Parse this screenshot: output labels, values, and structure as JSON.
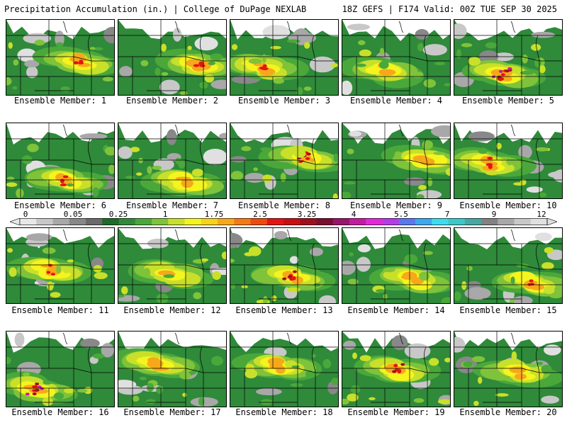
{
  "header": {
    "left": "Precipitation Accumulation (in.) | College of DuPage NEXLAB",
    "right": "18Z GEFS | F174 Valid: 00Z TUE SEP 30 2025"
  },
  "scale": {
    "labels": [
      "0",
      "0.05",
      "0.25",
      "1",
      "1.75",
      "2.5",
      "3.25",
      "4",
      "5.5",
      "7",
      "9",
      "12"
    ],
    "colors": [
      "#e8e8e8",
      "#c8c8c8",
      "#a8a8a8",
      "#888888",
      "#6a6a6a",
      "#1e6b2a",
      "#2f8a3a",
      "#4aa83a",
      "#7fc33a",
      "#c8e02a",
      "#f4f41e",
      "#f7d21a",
      "#f7a81a",
      "#f47a14",
      "#ee4a10",
      "#e41414",
      "#c80f14",
      "#a00f1e",
      "#7a0f32",
      "#98146e",
      "#c41ca0",
      "#e428d8",
      "#b43ce8",
      "#5a78ee",
      "#3ca8ee",
      "#3cdcee",
      "#3cc8c8",
      "#46a8a0",
      "#828282",
      "#a8a8a8",
      "#c8c8c8",
      "#e0e0e0"
    ]
  },
  "members": [
    {
      "label": "Ensemble Member: 1",
      "peak": 3
    },
    {
      "label": "Ensemble Member: 2",
      "peak": 3
    },
    {
      "label": "Ensemble Member: 3",
      "peak": 3
    },
    {
      "label": "Ensemble Member: 4",
      "peak": 2
    },
    {
      "label": "Ensemble Member: 5",
      "peak": 5
    },
    {
      "label": "Ensemble Member: 6",
      "peak": 3
    },
    {
      "label": "Ensemble Member: 7",
      "peak": 2
    },
    {
      "label": "Ensemble Member: 8",
      "peak": 4
    },
    {
      "label": "Ensemble Member: 9",
      "peak": 2
    },
    {
      "label": "Ensemble Member: 10",
      "peak": 3
    },
    {
      "label": "Ensemble Member: 11",
      "peak": 3
    },
    {
      "label": "Ensemble Member: 12",
      "peak": 2
    },
    {
      "label": "Ensemble Member: 13",
      "peak": 4
    },
    {
      "label": "Ensemble Member: 14",
      "peak": 2
    },
    {
      "label": "Ensemble Member: 15",
      "peak": 3
    },
    {
      "label": "Ensemble Member: 16",
      "peak": 5
    },
    {
      "label": "Ensemble Member: 17",
      "peak": 2
    },
    {
      "label": "Ensemble Member: 18",
      "peak": 2
    },
    {
      "label": "Ensemble Member: 19",
      "peak": 4
    },
    {
      "label": "Ensemble Member: 20",
      "peak": 2
    }
  ]
}
